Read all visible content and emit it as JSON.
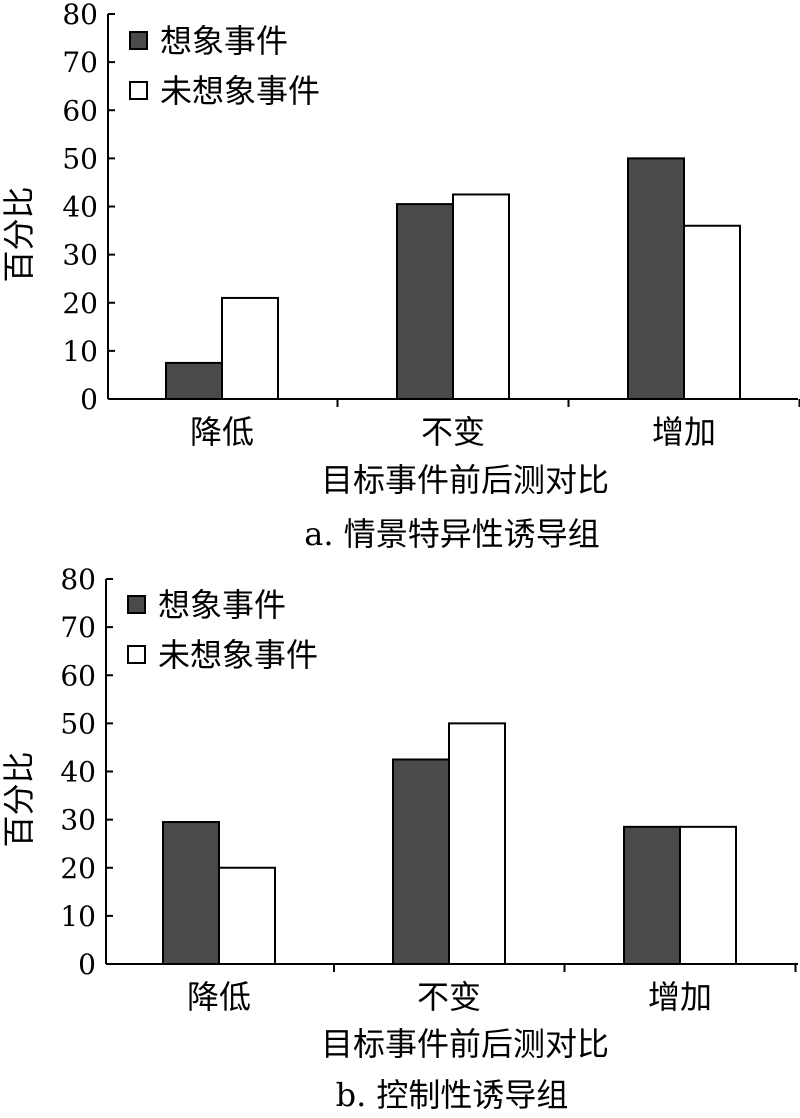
{
  "chart_data": [
    {
      "type": "bar",
      "caption": "a. 情景特异性诱导组",
      "xlabel": "目标事件前后测对比",
      "ylabel": "百分比",
      "ylim": [
        0,
        80
      ],
      "yticks": [
        0,
        10,
        20,
        30,
        40,
        50,
        60,
        70,
        80
      ],
      "categories": [
        "降低",
        "不变",
        "增加"
      ],
      "legend_position": "top-left",
      "series": [
        {
          "name": "想象事件",
          "color": "#4a4a4a",
          "values": [
            7.5,
            40.5,
            50
          ]
        },
        {
          "name": "未想象事件",
          "color": "#ffffff",
          "values": [
            21,
            42.5,
            36
          ]
        }
      ]
    },
    {
      "type": "bar",
      "caption": "b. 控制性诱导组",
      "xlabel": "目标事件前后测对比",
      "ylabel": "百分比",
      "ylim": [
        0,
        80
      ],
      "yticks": [
        0,
        10,
        20,
        30,
        40,
        50,
        60,
        70,
        80
      ],
      "categories": [
        "降低",
        "不变",
        "增加"
      ],
      "legend_position": "top-left",
      "series": [
        {
          "name": "想象事件",
          "color": "#4a4a4a",
          "values": [
            29.5,
            42.5,
            28.5
          ]
        },
        {
          "name": "未想象事件",
          "color": "#ffffff",
          "values": [
            20,
            50,
            28.5
          ]
        }
      ]
    }
  ]
}
